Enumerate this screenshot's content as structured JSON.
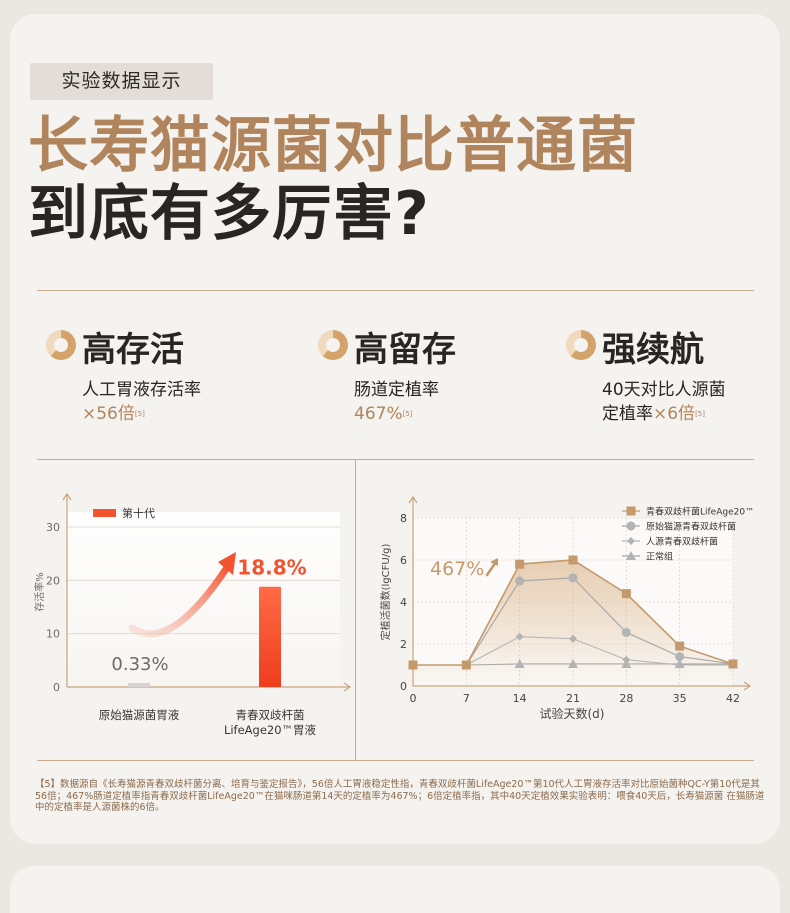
{
  "tag": "实验数据显示",
  "title": {
    "line1": "长寿猫源菌对比普通菌",
    "line2": "到底有多厉害?"
  },
  "features": [
    {
      "title": "高存活",
      "desc1": "人工胃液存活率",
      "desc2_prefix": "",
      "value": "×56倍",
      "ref": "[5]"
    },
    {
      "title": "高留存",
      "desc1": "肠道定植率",
      "desc2_prefix": "",
      "value": "467%",
      "ref": "[5]"
    },
    {
      "title": "强续航",
      "desc1": "40天对比人源菌",
      "desc2_prefix": "定植率",
      "value": "×6倍",
      "ref": "[5]"
    }
  ],
  "colors": {
    "brand": "#b0845c",
    "bar_accent": "#f4532f",
    "bar_muted": "#d9d4cf",
    "line_main": "#c49a6c",
    "line_gray": "#a3a3a3"
  },
  "chart_data": [
    {
      "type": "bar",
      "title": "",
      "ylabel": "存活率%",
      "ylim": [
        0,
        30
      ],
      "yticks": [
        "0",
        "10",
        "20",
        "30"
      ],
      "legend": "第十代",
      "legend_position": "top-left",
      "categories": [
        "原始猫源菌胃液",
        "青春双歧杆菌\nLifeAge20™胃液"
      ],
      "category_lines": [
        [
          "原始猫源菌胃液"
        ],
        [
          "青春双歧杆菌",
          "LifeAge20™胃液"
        ]
      ],
      "values": [
        0.33,
        18.8
      ],
      "data_labels": [
        "0.33%",
        "18.8%"
      ],
      "grid": true
    },
    {
      "type": "line",
      "title": "",
      "xlabel": "试验天数(d)",
      "ylabel": "定植活菌数(lgCFU/g)",
      "x": [
        0,
        7,
        14,
        21,
        28,
        35,
        42
      ],
      "xticks": [
        "0",
        "7",
        "14",
        "21",
        "28",
        "35",
        "42"
      ],
      "yticks": [
        "0",
        "2",
        "4",
        "6",
        "8"
      ],
      "ylim": [
        0,
        8
      ],
      "grid": true,
      "legend_position": "top-right",
      "annotation": "467%",
      "series": [
        {
          "name": "青春双歧杆菌LifeAge20™",
          "marker": "square",
          "points": [
            [
              0,
              1.0
            ],
            [
              7,
              1.0
            ],
            [
              14,
              5.8
            ],
            [
              21,
              6.0
            ],
            [
              28,
              4.4
            ],
            [
              35,
              1.9
            ],
            [
              42,
              1.05
            ]
          ]
        },
        {
          "name": "原始猫源青春双歧杆菌",
          "marker": "circle",
          "points": [
            [
              14,
              5.0
            ],
            [
              21,
              5.15
            ],
            [
              28,
              2.55
            ],
            [
              35,
              1.4
            ],
            [
              42,
              1.05
            ]
          ]
        },
        {
          "name": "人源青春双歧杆菌",
          "marker": "diamond",
          "points": [
            [
              14,
              2.35
            ],
            [
              21,
              2.25
            ],
            [
              28,
              1.25
            ],
            [
              35,
              1.0
            ],
            [
              42,
              1.0
            ]
          ]
        },
        {
          "name": "正常组",
          "marker": "triangle",
          "points": [
            [
              14,
              1.05
            ],
            [
              21,
              1.05
            ],
            [
              28,
              1.05
            ],
            [
              35,
              1.05
            ],
            [
              42,
              1.05
            ]
          ]
        }
      ]
    }
  ],
  "footnote": "【5】数据源自《长寿猫源青春双歧杆菌分离、培育与鉴定报告》，56倍人工胃液稳定性指，青春双歧杆菌LifeAge20™第10代人工胃液存活率对比原始菌种QC-Y第10代是其56倍；467%肠道定植率指青春双歧杆菌LifeAge20™在猫咪肠道第14天的定植率为467%；6倍定植率指，其中40天定植效果实验表明：喂食40天后，长寿猫源菌 在猫肠道中的定植率是人源菌株的6倍。"
}
